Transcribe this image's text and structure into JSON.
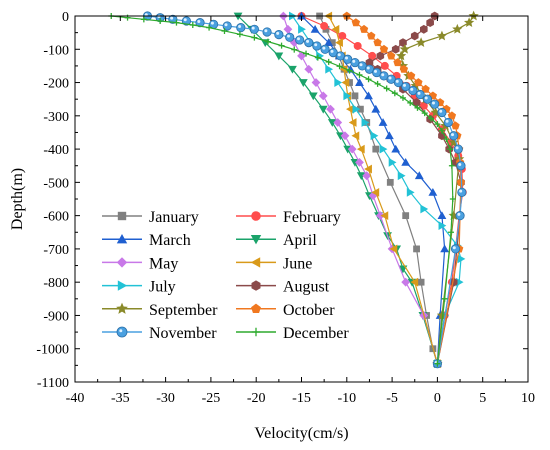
{
  "chart_data": {
    "type": "line",
    "title": "",
    "xlabel": "Velocity(cm/s)",
    "ylabel": "Depth(m)",
    "xlim": [
      -40,
      10
    ],
    "ylim": [
      -1100,
      0
    ],
    "xticks": [
      -40,
      -35,
      -30,
      -25,
      -20,
      -15,
      -10,
      -5,
      0,
      5,
      10
    ],
    "yticks": [
      0,
      -100,
      -200,
      -300,
      -400,
      -500,
      -600,
      -700,
      -800,
      -900,
      -1000,
      -1100
    ],
    "xtick_labels": [
      "-40",
      "-35",
      "-30",
      "-25",
      "-20",
      "-15",
      "-10",
      "-5",
      "0",
      "5",
      "10"
    ],
    "ytick_labels": [
      "0",
      "-100",
      "-200",
      "-300",
      "-400",
      "-500",
      "-600",
      "-700",
      "-800",
      "-900",
      "-1000",
      "-1100"
    ],
    "grid": false,
    "legend_position": "bottom-left",
    "legend_columns": 2,
    "series": [
      {
        "name": "January",
        "color": "#808080",
        "marker": "square",
        "x": [
          -13,
          -12.3,
          -11.6,
          -10.9,
          -10.3,
          -9.7,
          -9.1,
          -8.5,
          -7.8,
          -6.8,
          -5.2,
          -3.5,
          -2.3,
          -1.8,
          -1.2,
          -0.5,
          0
        ],
        "y": [
          0,
          -40,
          -80,
          -120,
          -160,
          -200,
          -240,
          -280,
          -320,
          -400,
          -500,
          -600,
          -700,
          -800,
          -900,
          -1000,
          -1045
        ]
      },
      {
        "name": "February",
        "color": "#ff4d4d",
        "marker": "circle",
        "x": [
          -15,
          -12.5,
          -10.5,
          -8.8,
          -7.2,
          -5.8,
          -4.5,
          -3.4,
          -2.5,
          -1.5,
          -0.5,
          0.5,
          1.5,
          2.3,
          2.7,
          2.8,
          2.4,
          1.6,
          0.8,
          0
        ],
        "y": [
          0,
          -30,
          -60,
          -90,
          -120,
          -150,
          -180,
          -210,
          -240,
          -270,
          -300,
          -340,
          -380,
          -420,
          -460,
          -530,
          -600,
          -800,
          -900,
          -1045
        ]
      },
      {
        "name": "March",
        "color": "#1f5fd0",
        "marker": "triangle-up",
        "x": [
          -15,
          -13.5,
          -12,
          -10.8,
          -9.6,
          -8.6,
          -7.6,
          -6.8,
          -6,
          -5.3,
          -4.6,
          -3.5,
          -2,
          -0.5,
          0.5,
          0.8,
          0.3,
          0
        ],
        "y": [
          0,
          -40,
          -80,
          -120,
          -160,
          -200,
          -240,
          -280,
          -320,
          -360,
          -400,
          -440,
          -480,
          -530,
          -600,
          -700,
          -900,
          -1045
        ]
      },
      {
        "name": "April",
        "color": "#1aa36a",
        "marker": "triangle-down",
        "x": [
          -22,
          -20.5,
          -19,
          -17.5,
          -16,
          -14.8,
          -13.7,
          -12.6,
          -11.6,
          -10.7,
          -9.9,
          -9.1,
          -8.4,
          -7.5,
          -6.5,
          -5.5,
          -4.5,
          -3.8,
          -2.8,
          -1.6,
          0
        ],
        "y": [
          0,
          -40,
          -80,
          -120,
          -160,
          -200,
          -240,
          -280,
          -320,
          -360,
          -400,
          -440,
          -480,
          -540,
          -600,
          -660,
          -700,
          -760,
          -800,
          -900,
          -1045
        ]
      },
      {
        "name": "May",
        "color": "#c878e8",
        "marker": "diamond",
        "x": [
          -17,
          -16.5,
          -15.8,
          -15,
          -14.2,
          -13.4,
          -12.6,
          -11.8,
          -11,
          -10.2,
          -9.4,
          -8.6,
          -7.8,
          -7.1,
          -6.3,
          -5,
          -3.5,
          -1.5,
          0
        ],
        "y": [
          0,
          -40,
          -80,
          -120,
          -160,
          -200,
          -240,
          -280,
          -320,
          -360,
          -400,
          -440,
          -480,
          -540,
          -600,
          -700,
          -800,
          -900,
          -1045
        ]
      },
      {
        "name": "June",
        "color": "#d99a1a",
        "marker": "triangle-left",
        "x": [
          -12,
          -11.2,
          -10.8,
          -10.5,
          -10.3,
          -10.1,
          -9.9,
          -9.6,
          -9.3,
          -9,
          -8.4,
          -7.6,
          -6.8,
          -5.8,
          -4.8,
          -2.5,
          0
        ],
        "y": [
          0,
          -40,
          -80,
          -120,
          -160,
          -200,
          -240,
          -280,
          -320,
          -360,
          -400,
          -460,
          -530,
          -600,
          -700,
          -800,
          -1045
        ]
      },
      {
        "name": "July",
        "color": "#22c2d6",
        "marker": "triangle-right",
        "x": [
          -16,
          -15,
          -14,
          -13,
          -12,
          -11,
          -10,
          -9,
          -8,
          -7,
          -6,
          -5,
          -4,
          -3,
          -1.5,
          0.5,
          2.2,
          2.6,
          2.4,
          0.8,
          0
        ],
        "y": [
          0,
          -40,
          -80,
          -120,
          -160,
          -200,
          -240,
          -280,
          -320,
          -360,
          -400,
          -440,
          -480,
          -530,
          -580,
          -630,
          -690,
          -730,
          -800,
          -900,
          -1045
        ]
      },
      {
        "name": "August",
        "color": "#8b4a4a",
        "marker": "hexagon",
        "x": [
          -0.3,
          -0.8,
          -1.5,
          -2.5,
          -3.8,
          -4.6,
          -6.3,
          -7.5,
          -6.6,
          -5.2,
          -3.8,
          -2.3,
          -0.8,
          0.5,
          1.3,
          2,
          2.6,
          2.5,
          1.8,
          0
        ],
        "y": [
          0,
          -20,
          -40,
          -60,
          -80,
          -100,
          -120,
          -140,
          -160,
          -190,
          -220,
          -260,
          -310,
          -360,
          -400,
          -440,
          -500,
          -600,
          -800,
          -1045
        ]
      },
      {
        "name": "September",
        "color": "#8a8a2a",
        "marker": "star",
        "x": [
          4,
          3.5,
          2.2,
          0.5,
          -1.8,
          -3.6,
          -4,
          -3.8,
          -3.2,
          -2.4,
          -1.3,
          -0.2,
          0.9,
          1.8,
          2.4,
          1.8,
          0.5,
          0
        ],
        "y": [
          0,
          -20,
          -40,
          -60,
          -80,
          -100,
          -120,
          -150,
          -180,
          -210,
          -250,
          -290,
          -330,
          -380,
          -430,
          -600,
          -900,
          -1045
        ]
      },
      {
        "name": "October",
        "color": "#f07820",
        "marker": "pentagon",
        "x": [
          -10,
          -9,
          -8.1,
          -7.3,
          -6.6,
          -5.9,
          -5.1,
          -4.4,
          -3.7,
          -2.9,
          -2.1,
          -1.3,
          -0.5,
          0.3,
          1,
          1.6,
          2,
          2.2,
          2.4,
          2.5,
          2.6,
          2.4,
          0
        ],
        "y": [
          0,
          -20,
          -40,
          -60,
          -80,
          -100,
          -120,
          -140,
          -160,
          -180,
          -200,
          -220,
          -240,
          -260,
          -280,
          -300,
          -330,
          -360,
          -400,
          -440,
          -500,
          -700,
          -1045
        ]
      },
      {
        "name": "November",
        "color": "#4aa0e0",
        "marker": "sphere",
        "x": [
          -32,
          -30.6,
          -29.2,
          -27.7,
          -26.2,
          -24.7,
          -23.2,
          -21.7,
          -20.2,
          -18.8,
          -17.5,
          -16.3,
          -15.2,
          -14.2,
          -13.3,
          -12.4,
          -11.5,
          -10.7,
          -9.9,
          -9.1,
          -8.3,
          -7.5,
          -6.7,
          -5.9,
          -5.1,
          -4.3,
          -3.5,
          -2.7,
          -1.9,
          -1.1,
          -0.3,
          0.5,
          1.2,
          1.8,
          2.3,
          2.6,
          2.7,
          2.5,
          2,
          0
        ],
        "y": [
          0,
          -5,
          -10,
          -15,
          -20,
          -25,
          -30,
          -35,
          -40,
          -48,
          -56,
          -64,
          -72,
          -80,
          -90,
          -100,
          -110,
          -120,
          -130,
          -140,
          -150,
          -160,
          -170,
          -180,
          -190,
          -200,
          -212,
          -224,
          -236,
          -250,
          -265,
          -290,
          -320,
          -360,
          -400,
          -450,
          -530,
          -600,
          -700,
          -1045
        ]
      },
      {
        "name": "December",
        "color": "#2eaa2e",
        "marker": "plus",
        "x": [
          -36,
          -34.2,
          -32.4,
          -30.6,
          -28.8,
          -27,
          -25.2,
          -23.5,
          -21.8,
          -20.2,
          -18.7,
          -17.2,
          -15.8,
          -14.5,
          -13.2,
          -12,
          -10.8,
          -9.7,
          -8.6,
          -7.6,
          -6.6,
          -5.6,
          -4.7,
          -3.8,
          -3,
          -2.2,
          -1.4,
          -0.7,
          0,
          0.5,
          1,
          1.4,
          1.6,
          1.7,
          1.5,
          0.8,
          0
        ],
        "y": [
          0,
          -5,
          -10,
          -15,
          -20,
          -27,
          -35,
          -45,
          -55,
          -65,
          -77,
          -89,
          -101,
          -113,
          -125,
          -138,
          -151,
          -164,
          -177,
          -190,
          -204,
          -218,
          -232,
          -246,
          -261,
          -276,
          -292,
          -308,
          -325,
          -345,
          -370,
          -400,
          -450,
          -550,
          -650,
          -850,
          -1045
        ]
      }
    ]
  }
}
